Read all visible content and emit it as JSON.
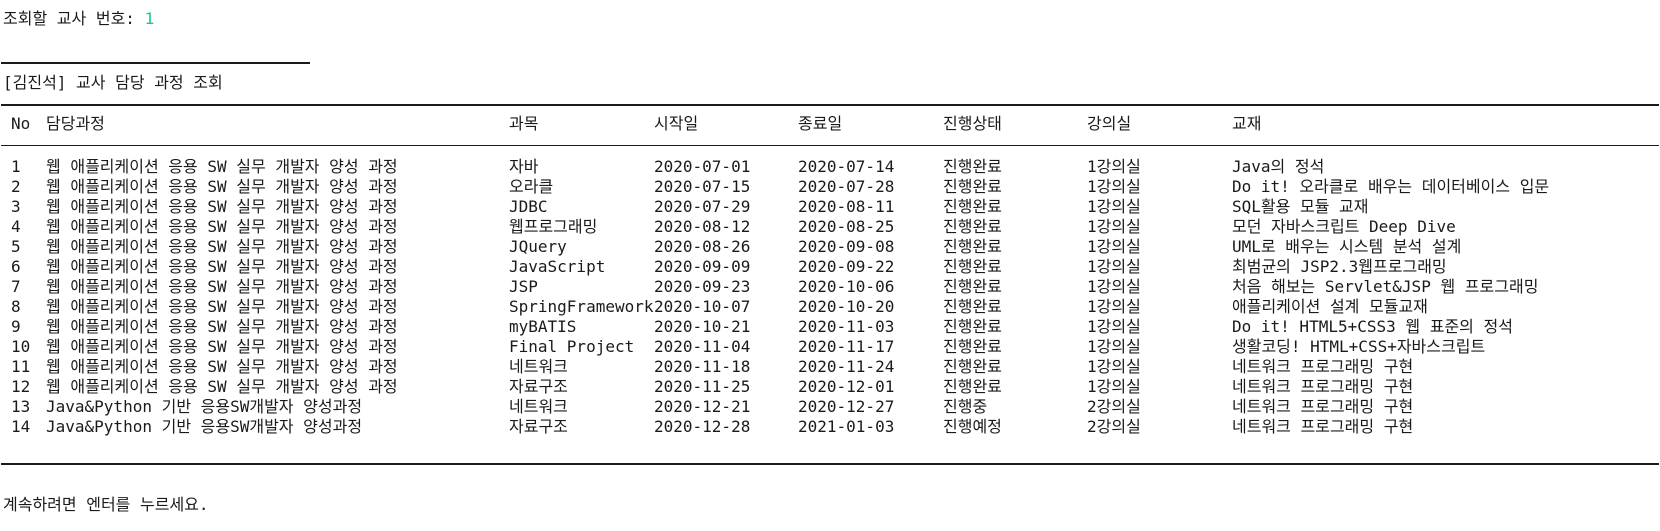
{
  "prompt": {
    "label": "조회할 교사 번호: ",
    "value": "1"
  },
  "section_title": "[김진석] 교사 담당 과정 조회",
  "table": {
    "headers": [
      "No",
      "담당과정",
      "과목",
      "시작일",
      "종료일",
      "진행상태",
      "강의실",
      "교재"
    ],
    "rows": [
      [
        "1",
        "웹 애플리케이션 응용 SW 실무 개발자 양성 과정",
        "자바",
        "2020-07-01",
        "2020-07-14",
        "진행완료",
        "1강의실",
        "Java의 정석"
      ],
      [
        "2",
        "웹 애플리케이션 응용 SW 실무 개발자 양성 과정",
        "오라클",
        "2020-07-15",
        "2020-07-28",
        "진행완료",
        "1강의실",
        "Do it! 오라클로 배우는 데이터베이스 입문"
      ],
      [
        "3",
        "웹 애플리케이션 응용 SW 실무 개발자 양성 과정",
        "JDBC",
        "2020-07-29",
        "2020-08-11",
        "진행완료",
        "1강의실",
        "SQL활용 모듈 교재"
      ],
      [
        "4",
        "웹 애플리케이션 응용 SW 실무 개발자 양성 과정",
        "웹프로그래밍",
        "2020-08-12",
        "2020-08-25",
        "진행완료",
        "1강의실",
        "모던 자바스크립트 Deep Dive"
      ],
      [
        "5",
        "웹 애플리케이션 응용 SW 실무 개발자 양성 과정",
        "JQuery",
        "2020-08-26",
        "2020-09-08",
        "진행완료",
        "1강의실",
        "UML로 배우는 시스템 분석 설계"
      ],
      [
        "6",
        "웹 애플리케이션 응용 SW 실무 개발자 양성 과정",
        "JavaScript",
        "2020-09-09",
        "2020-09-22",
        "진행완료",
        "1강의실",
        "최범균의 JSP2.3웹프로그래밍"
      ],
      [
        "7",
        "웹 애플리케이션 응용 SW 실무 개발자 양성 과정",
        "JSP",
        "2020-09-23",
        "2020-10-06",
        "진행완료",
        "1강의실",
        "처음 해보는 Servlet&JSP 웹 프로그래밍"
      ],
      [
        "8",
        "웹 애플리케이션 응용 SW 실무 개발자 양성 과정",
        "SpringFramework",
        "2020-10-07",
        "2020-10-20",
        "진행완료",
        "1강의실",
        "애플리케이션 설계 모듈교재"
      ],
      [
        "9",
        "웹 애플리케이션 응용 SW 실무 개발자 양성 과정",
        "myBATIS",
        "2020-10-21",
        "2020-11-03",
        "진행완료",
        "1강의실",
        "Do it! HTML5+CSS3 웹 표준의 정석"
      ],
      [
        "10",
        "웹 애플리케이션 응용 SW 실무 개발자 양성 과정",
        "Final Project",
        "2020-11-04",
        "2020-11-17",
        "진행완료",
        "1강의실",
        "생활코딩! HTML+CSS+자바스크립트"
      ],
      [
        "11",
        "웹 애플리케이션 응용 SW 실무 개발자 양성 과정",
        "네트워크",
        "2020-11-18",
        "2020-11-24",
        "진행완료",
        "1강의실",
        "네트워크 프로그래밍 구현"
      ],
      [
        "12",
        "웹 애플리케이션 응용 SW 실무 개발자 양성 과정",
        "자료구조",
        "2020-11-25",
        "2020-12-01",
        "진행완료",
        "1강의실",
        "네트워크 프로그래밍 구현"
      ],
      [
        "13",
        "Java&Python 기반 응용SW개발자 양성과정",
        "네트워크",
        "2020-12-21",
        "2020-12-27",
        "진행중",
        "2강의실",
        "네트워크 프로그래밍 구현"
      ],
      [
        "14",
        "Java&Python 기반 응용SW개발자 양성과정",
        "자료구조",
        "2020-12-28",
        "2021-01-03",
        "진행예정",
        "2강의실",
        "네트워크 프로그래밍 구현"
      ]
    ]
  },
  "continue_prompt": "계속하려면 엔터를 누르세요.",
  "colors": {
    "text": "#1a1a1a",
    "input_value": "#15c39a",
    "background": "#ffffff"
  }
}
